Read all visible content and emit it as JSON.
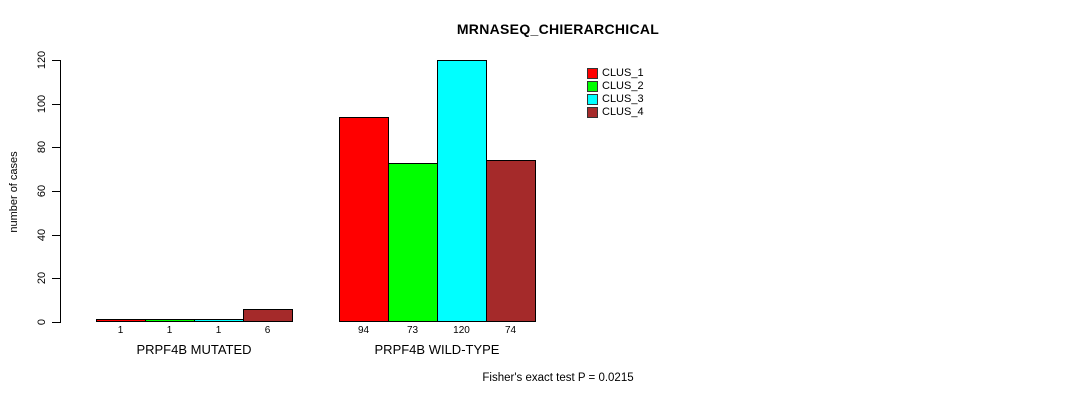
{
  "chart_data": {
    "type": "bar",
    "title": "MRNASEQ_CHIERARCHICAL",
    "ylabel": "number of cases",
    "xlabel": "",
    "ylim": [
      0,
      120
    ],
    "yticks": [
      0,
      20,
      40,
      60,
      80,
      100,
      120
    ],
    "grid": false,
    "legend_position": "top-right",
    "series": [
      {
        "name": "CLUS_1",
        "color": "#ff0000"
      },
      {
        "name": "CLUS_2",
        "color": "#00ff00"
      },
      {
        "name": "CLUS_3",
        "color": "#00ffff"
      },
      {
        "name": "CLUS_4",
        "color": "#a52a2a"
      }
    ],
    "groups": [
      {
        "label": "PRPF4B MUTATED",
        "values": [
          1,
          1,
          1,
          6
        ]
      },
      {
        "label": "PRPF4B WILD-TYPE",
        "values": [
          94,
          73,
          120,
          74
        ]
      }
    ],
    "bar_border_color": "#000000",
    "annotation": "Fisher's exact test P = 0.0215"
  }
}
